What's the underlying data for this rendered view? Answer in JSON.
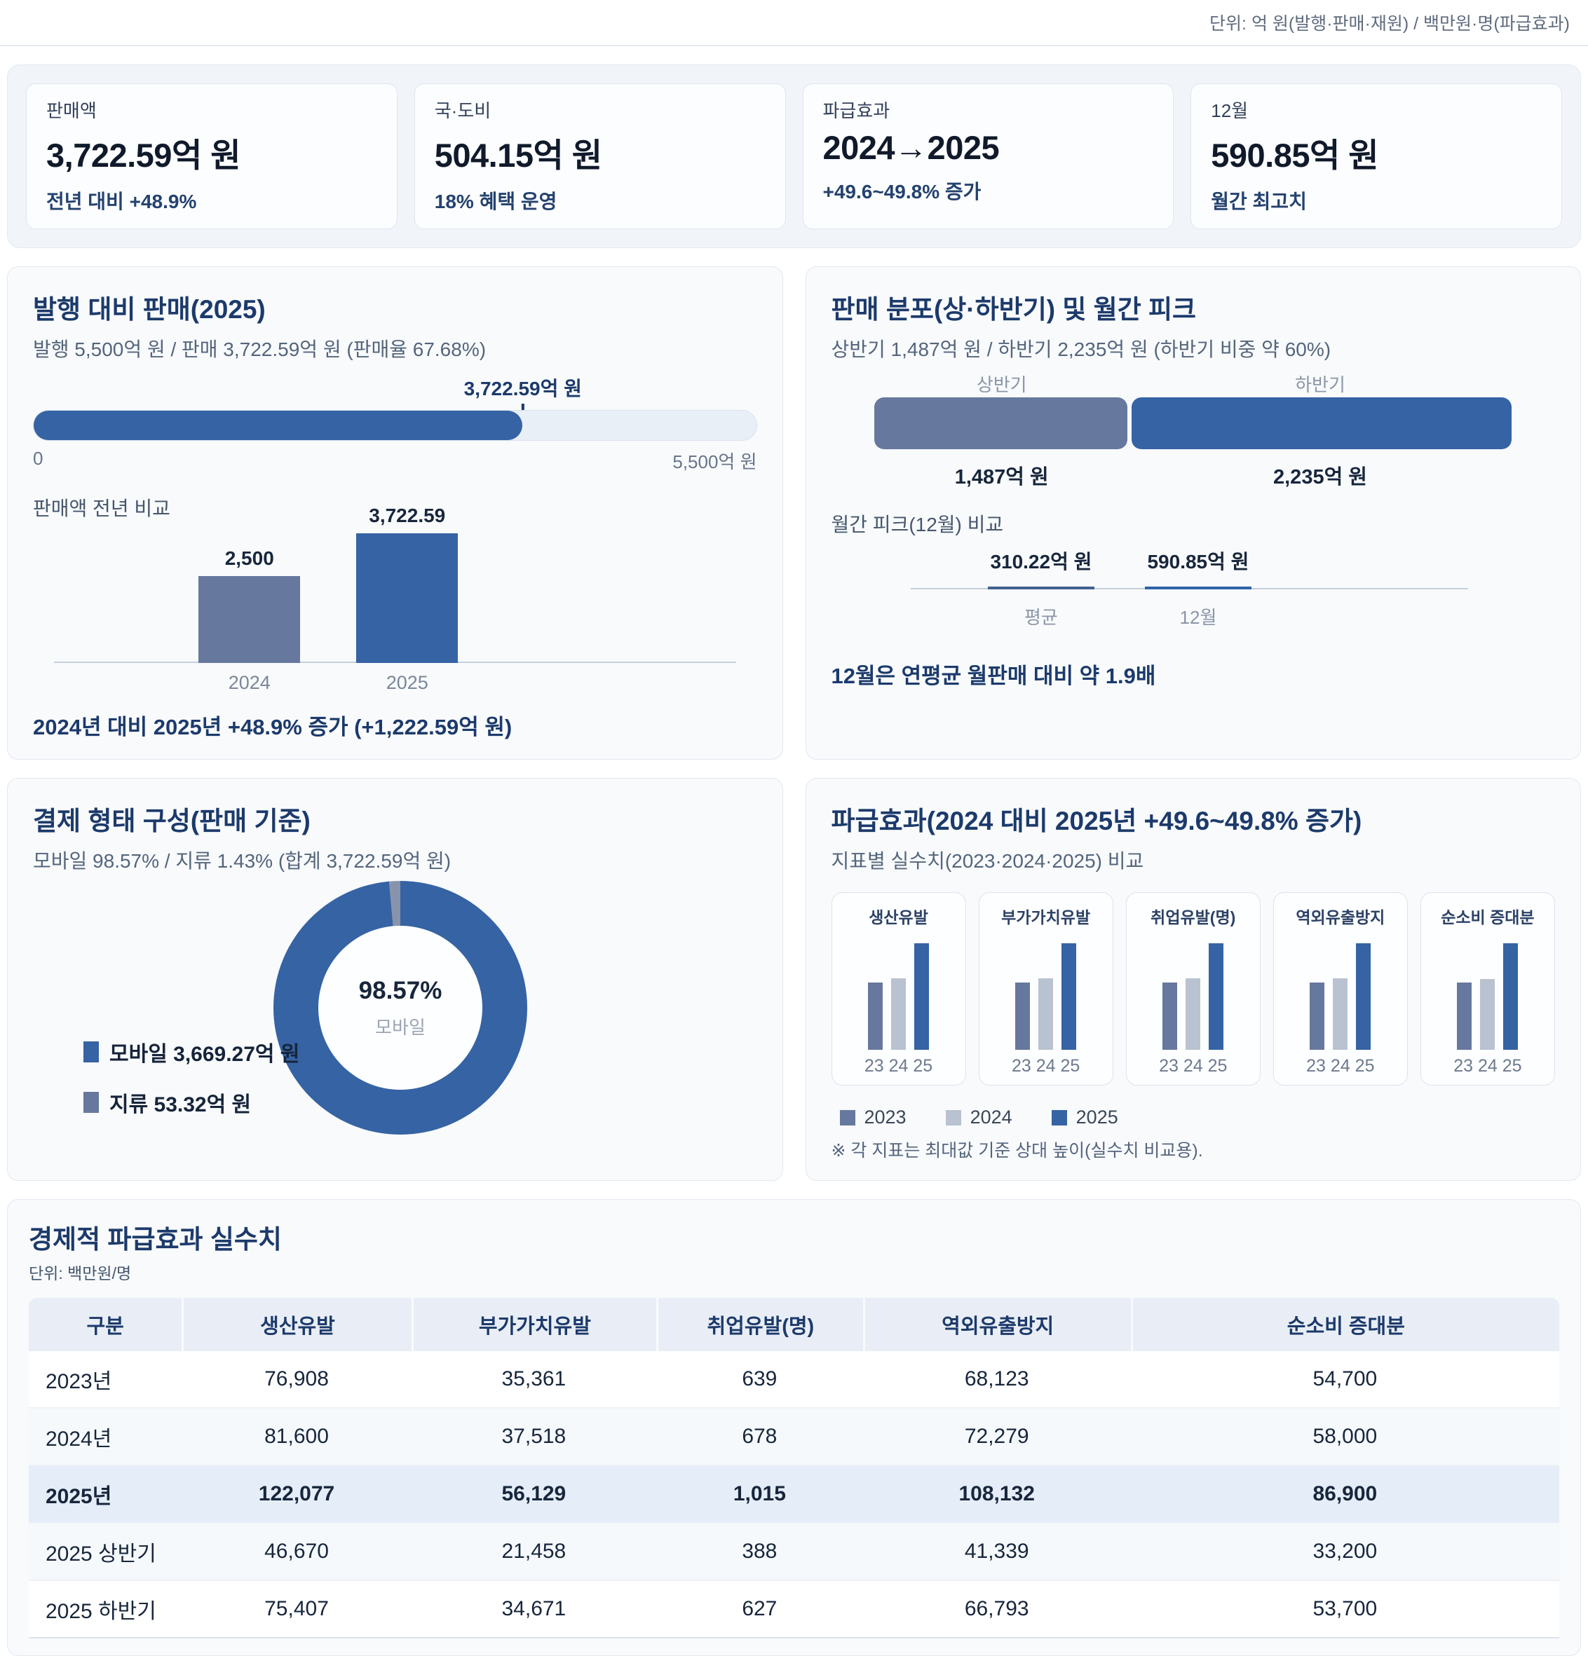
{
  "units_note": "단위: 억 원(발행·판매·재원) / 백만원·명(파급효과)",
  "colors": {
    "blue": "#3563a4",
    "slate": "#67789e",
    "light_gray": "#b9c2d0",
    "sliver": "#8894ab",
    "navy": "#1c3a6b"
  },
  "kpis": [
    {
      "label": "판매액",
      "value": "3,722.59억 원",
      "sub": "전년 대비 +48.9%"
    },
    {
      "label": "국·도비",
      "value": "504.15억 원",
      "sub": "18% 혜택 운영"
    },
    {
      "label": "파급효과",
      "value": "2024→2025",
      "sub": "+49.6~49.8% 증가"
    },
    {
      "label": "12월",
      "value": "590.85억 원",
      "sub": "월간 최고치"
    }
  ],
  "issuance": {
    "title": "발행 대비 판매(2025)",
    "subtitle": "발행 5,500억 원 / 판매 3,722.59억 원 (판매율 67.68%)",
    "marker_label": "3,722.59억 원",
    "progress_pct": 67.68,
    "scale_min": "0",
    "scale_max": "5,500억 원",
    "yoy_heading": "판매액 전년 비교",
    "yoy": {
      "categories": [
        "2024",
        "2025"
      ],
      "values": [
        2500,
        3722.59
      ],
      "value_labels": [
        "2,500",
        "3,722.59"
      ],
      "colors": [
        "#67789e",
        "#3563a4"
      ]
    },
    "footer": "2024년 대비 2025년 +48.9% 증가 (+1,222.59억 원)"
  },
  "distribution": {
    "title": "판매 분포(상·하반기) 및 월간 피크",
    "subtitle": "상반기 1,487억 원 / 하반기 2,235억 원 (하반기 비중 약 60%)",
    "segments": [
      {
        "label": "상반기",
        "value_label": "1,487억 원",
        "value": 1487,
        "pct": 39.9,
        "color": "#67789e"
      },
      {
        "label": "하반기",
        "value_label": "2,235억 원",
        "value": 2235,
        "pct": 60.1,
        "color": "#3563a4"
      }
    ],
    "peak_heading": "월간 피크(12월) 비교",
    "peak": {
      "items": [
        {
          "label": "평균",
          "value_label": "310.22억 원",
          "value": 310.22,
          "color": "#41618f"
        },
        {
          "label": "12월",
          "value_label": "590.85억 원",
          "value": 590.85,
          "color": "#2f62a8"
        }
      ]
    },
    "footer": "12월은 연평균 월판매 대비 약 1.9배"
  },
  "payment": {
    "title": "결제 형태 구성(판매 기준)",
    "subtitle": "모바일 98.57% / 지류 1.43% (합계 3,722.59억 원)",
    "center_pct": "98.57%",
    "center_label": "모바일",
    "mobile_pct": 98.57,
    "paper_pct": 1.43,
    "legend": [
      {
        "label": "모바일 3,669.27억 원",
        "color": "#3563a4"
      },
      {
        "label": "지류 53.32억 원",
        "color": "#67789e"
      }
    ]
  },
  "impact": {
    "title": "파급효과(2024 대비 2025년 +49.6~49.8% 증가)",
    "subtitle": "지표별 실수치(2023·2024·2025) 비교",
    "metrics": [
      {
        "name": "생산유발",
        "values": [
          76908,
          81600,
          122077
        ]
      },
      {
        "name": "부가가치유발",
        "values": [
          35361,
          37518,
          56129
        ]
      },
      {
        "name": "취업유발(명)",
        "values": [
          639,
          678,
          1015
        ]
      },
      {
        "name": "역외유출방지",
        "values": [
          68123,
          72279,
          108132
        ]
      },
      {
        "name": "순소비 증대분",
        "values": [
          54700,
          58000,
          86900
        ]
      }
    ],
    "bar_axis_label": "23 24 25",
    "bar_colors": [
      "#67789e",
      "#b9c2d0",
      "#3563a4"
    ],
    "legend": [
      {
        "label": "2023",
        "color": "#67789e"
      },
      {
        "label": "2024",
        "color": "#b9c2d0"
      },
      {
        "label": "2025",
        "color": "#3563a4"
      }
    ],
    "footnote": "※ 각 지표는 최대값 기준 상대 높이(실수치 비교용)."
  },
  "table": {
    "title": "경제적 파급효과 실수치",
    "unit": "단위: 백만원/명",
    "columns": [
      "구분",
      "생산유발",
      "부가가치유발",
      "취업유발(명)",
      "역외유출방지",
      "순소비 증대분"
    ],
    "rows": [
      {
        "label": "2023년",
        "values": [
          "76,908",
          "35,361",
          "639",
          "68,123",
          "54,700"
        ],
        "highlight": false,
        "tint": false
      },
      {
        "label": "2024년",
        "values": [
          "81,600",
          "37,518",
          "678",
          "72,279",
          "58,000"
        ],
        "highlight": false,
        "tint": true
      },
      {
        "label": "2025년",
        "values": [
          "122,077",
          "56,129",
          "1,015",
          "108,132",
          "86,900"
        ],
        "highlight": true,
        "tint": false
      },
      {
        "label": "2025 상반기",
        "values": [
          "46,670",
          "21,458",
          "388",
          "41,339",
          "33,200"
        ],
        "highlight": false,
        "tint": true
      },
      {
        "label": "2025 하반기",
        "values": [
          "75,407",
          "34,671",
          "627",
          "66,793",
          "53,700"
        ],
        "highlight": false,
        "tint": false
      }
    ]
  },
  "chart_data": [
    {
      "type": "bar",
      "title": "발행 대비 판매(2025)",
      "categories": [
        "판매",
        "발행"
      ],
      "values": [
        3722.59,
        5500
      ],
      "note": "판매율 67.68%",
      "unit": "억 원"
    },
    {
      "type": "bar",
      "title": "판매액 전년 비교",
      "categories": [
        "2024",
        "2025"
      ],
      "values": [
        2500,
        3722.59
      ],
      "note": "2024년 대비 2025년 +48.9% 증가 (+1,222.59억 원)",
      "unit": "억 원"
    },
    {
      "type": "bar",
      "title": "판매 분포(상·하반기)",
      "categories": [
        "상반기",
        "하반기"
      ],
      "values": [
        1487,
        2235
      ],
      "note": "하반기 비중 약 60%",
      "unit": "억 원"
    },
    {
      "type": "bar",
      "title": "월간 피크(12월) 비교",
      "categories": [
        "평균",
        "12월"
      ],
      "values": [
        310.22,
        590.85
      ],
      "note": "12월은 연평균 월판매 대비 약 1.9배",
      "unit": "억 원"
    },
    {
      "type": "pie",
      "title": "결제 형태 구성(판매 기준)",
      "categories": [
        "모바일",
        "지류"
      ],
      "values": [
        98.57,
        1.43
      ],
      "amounts": [
        3669.27,
        53.32
      ],
      "unit": "억 원"
    },
    {
      "type": "bar",
      "title": "파급효과 지표별 실수치(2023·2024·2025)",
      "categories": [
        "생산유발",
        "부가가치유발",
        "취업유발(명)",
        "역외유출방지",
        "순소비 증대분"
      ],
      "series": [
        {
          "name": "2023",
          "values": [
            76908,
            35361,
            639,
            68123,
            54700
          ]
        },
        {
          "name": "2024",
          "values": [
            81600,
            37518,
            678,
            72279,
            58000
          ]
        },
        {
          "name": "2025",
          "values": [
            122077,
            56129,
            1015,
            108132,
            86900
          ]
        }
      ],
      "unit": "백만원/명",
      "legend_position": "bottom"
    }
  ]
}
